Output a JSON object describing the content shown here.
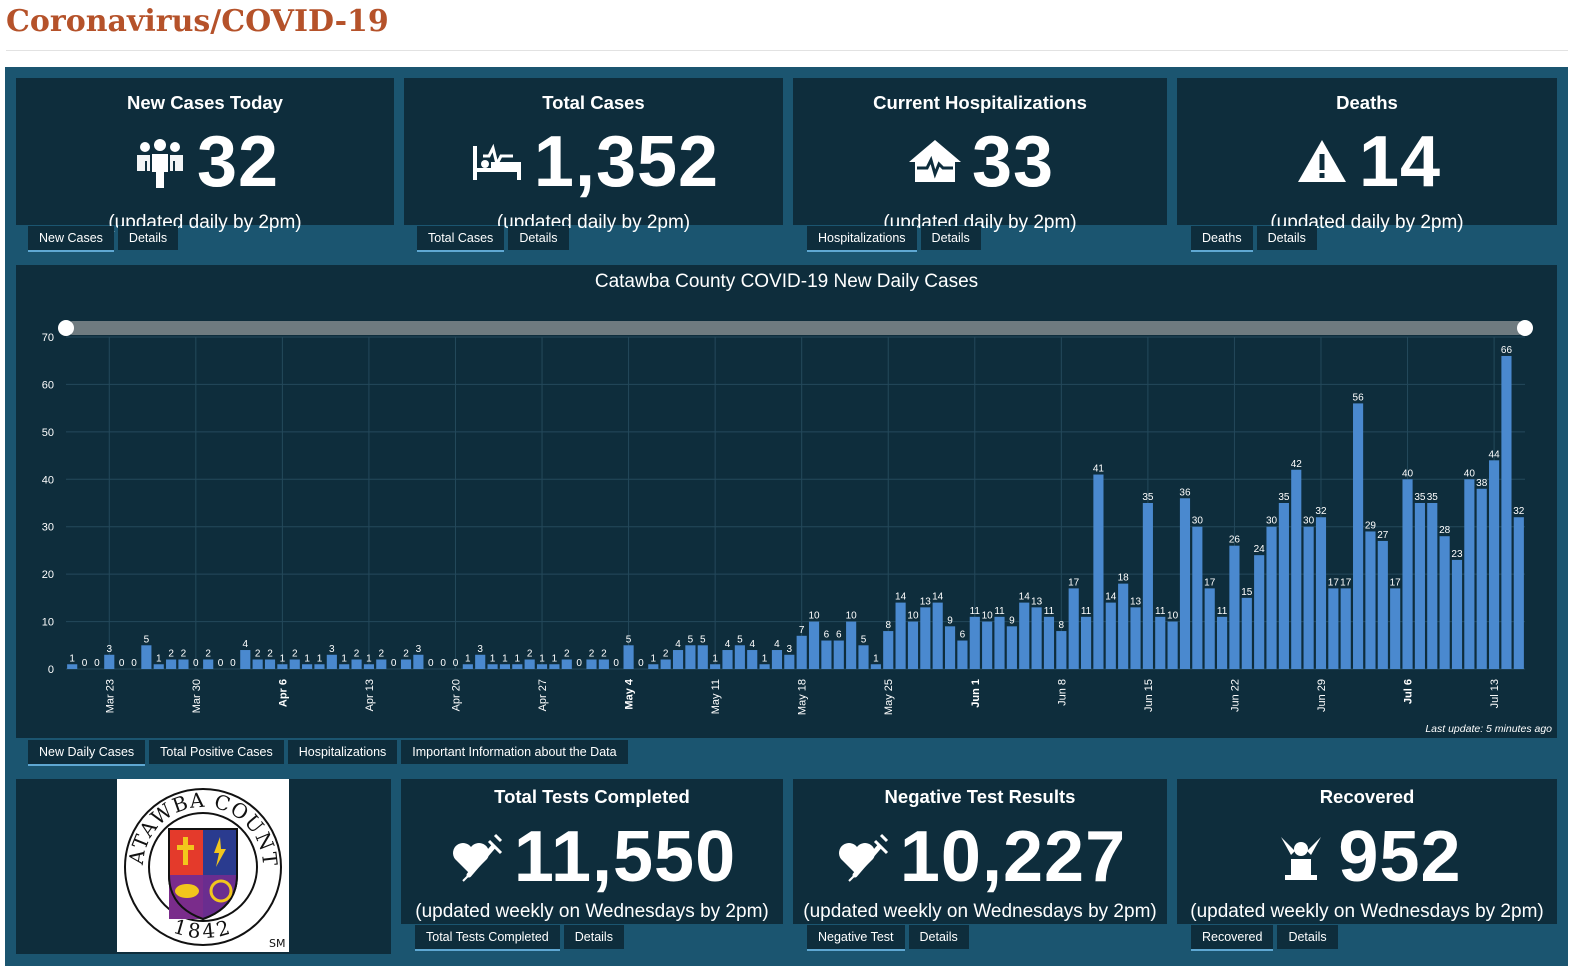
{
  "page": {
    "title": "Coronavirus/COVID-19"
  },
  "cards": [
    {
      "title": "New Cases Today",
      "value": "32",
      "subtitle": "(updated daily by 2pm)",
      "icon": "people-group-icon",
      "tabs": [
        "New Cases",
        "Details"
      ]
    },
    {
      "title": "Total Cases",
      "value": "1,352",
      "subtitle": "(updated daily by 2pm)",
      "icon": "hospital-bed-icon",
      "tabs": [
        "Total Cases",
        "Details"
      ]
    },
    {
      "title": "Current Hospitalizations",
      "value": "33",
      "subtitle": "(updated daily by 2pm)",
      "icon": "hospital-house-icon",
      "tabs": [
        "Hospitalizations",
        "Details"
      ]
    },
    {
      "title": "Deaths",
      "value": "14",
      "subtitle": "(updated daily by 2pm)",
      "icon": "warning-triangle-icon",
      "tabs": [
        "Deaths",
        "Details"
      ]
    },
    {
      "title": "Total Tests Completed",
      "value": "11,550",
      "subtitle": "(updated weekly on Wednesdays by 2pm)",
      "icon": "heart-syringe-icon",
      "tabs": [
        "Total Tests Completed",
        "Details"
      ]
    },
    {
      "title": "Negative Test Results",
      "value": "10,227",
      "subtitle": "(updated weekly on Wednesdays by 2pm)",
      "icon": "heart-syringe-icon",
      "tabs": [
        "Negative Test",
        "Details"
      ]
    },
    {
      "title": "Recovered",
      "value": "952",
      "subtitle": "(updated weekly on Wednesdays by 2pm)",
      "icon": "recovered-person-icon",
      "tabs": [
        "Recovered",
        "Details"
      ]
    }
  ],
  "chart_tabs": [
    "New Daily Cases",
    "Total Positive Cases",
    "Hospitalizations",
    "Important Information about the Data"
  ],
  "last_update": "Last update: 5 minutes ago",
  "logo": {
    "name": "CATAWBA COUNTY",
    "year": "1842",
    "mark": "SM"
  },
  "colors": {
    "bar": "#4a89cf",
    "panel": "#0e2d3c",
    "background": "#1b5570",
    "title": "#b5522a",
    "slider": "#6f7b80"
  },
  "chart_data": {
    "type": "bar",
    "title": "Catawba County COVID-19 New Daily Cases",
    "xlabel": "",
    "ylabel": "",
    "ylim": [
      0,
      70
    ],
    "yticks": [
      0,
      10,
      20,
      30,
      40,
      50,
      60,
      70
    ],
    "grid": true,
    "x_tick_labels": [
      {
        "label": "Mar 23",
        "index": 3,
        "bold": false
      },
      {
        "label": "Mar 30",
        "index": 10,
        "bold": false
      },
      {
        "label": "Apr 6",
        "index": 17,
        "bold": true
      },
      {
        "label": "Apr 13",
        "index": 24,
        "bold": false
      },
      {
        "label": "Apr 20",
        "index": 31,
        "bold": false
      },
      {
        "label": "Apr 27",
        "index": 38,
        "bold": false
      },
      {
        "label": "May 4",
        "index": 45,
        "bold": true
      },
      {
        "label": "May 11",
        "index": 52,
        "bold": false
      },
      {
        "label": "May 18",
        "index": 59,
        "bold": false
      },
      {
        "label": "May 25",
        "index": 66,
        "bold": false
      },
      {
        "label": "Jun 1",
        "index": 73,
        "bold": true
      },
      {
        "label": "Jun 8",
        "index": 80,
        "bold": false
      },
      {
        "label": "Jun 15",
        "index": 87,
        "bold": false
      },
      {
        "label": "Jun 22",
        "index": 94,
        "bold": false
      },
      {
        "label": "Jun 29",
        "index": 101,
        "bold": false
      },
      {
        "label": "Jul 6",
        "index": 108,
        "bold": true
      },
      {
        "label": "Jul 13",
        "index": 115,
        "bold": false
      }
    ],
    "values": [
      1,
      0,
      0,
      3,
      0,
      0,
      5,
      1,
      2,
      2,
      0,
      2,
      0,
      0,
      4,
      2,
      2,
      1,
      2,
      1,
      1,
      3,
      1,
      2,
      1,
      2,
      0,
      2,
      3,
      0,
      0,
      0,
      1,
      3,
      1,
      1,
      1,
      2,
      1,
      1,
      2,
      0,
      2,
      2,
      0,
      5,
      0,
      1,
      2,
      4,
      5,
      5,
      1,
      4,
      5,
      4,
      1,
      4,
      3,
      7,
      10,
      6,
      6,
      10,
      5,
      1,
      8,
      14,
      10,
      13,
      14,
      9,
      6,
      11,
      10,
      11,
      9,
      14,
      13,
      11,
      8,
      17,
      11,
      41,
      14,
      18,
      13,
      35,
      11,
      10,
      36,
      30,
      17,
      11,
      26,
      15,
      24,
      30,
      35,
      42,
      30,
      32,
      17,
      17,
      56,
      29,
      27,
      17,
      40,
      35,
      35,
      28,
      23,
      40,
      38,
      44,
      66,
      32
    ]
  }
}
